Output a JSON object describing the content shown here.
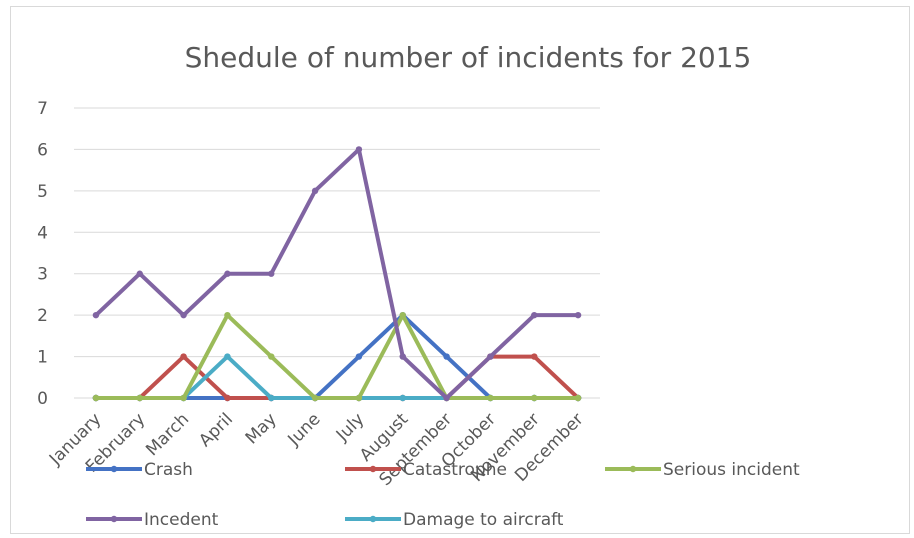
{
  "chart_data": {
    "type": "line",
    "title": "Shedule of number of incidents for 2015",
    "xlabel": "",
    "ylabel": "",
    "categories": [
      "January",
      "February",
      "March",
      "April",
      "May",
      "June",
      "July",
      "August",
      "September",
      "October",
      "November",
      "December"
    ],
    "yticks": [
      "0",
      "1",
      "2",
      "3",
      "4",
      "5",
      "6",
      "7"
    ],
    "ylim": [
      0,
      7
    ],
    "grid": true,
    "legend_position": "bottom",
    "series": [
      {
        "name": "Crash",
        "color": "#4472c4",
        "values": [
          0,
          0,
          0,
          0,
          0,
          0,
          1,
          2,
          1,
          0,
          0,
          0
        ]
      },
      {
        "name": "Catastrophe",
        "color": "#c0504d",
        "values": [
          0,
          0,
          1,
          0,
          0,
          0,
          0,
          0,
          0,
          1,
          1,
          0
        ]
      },
      {
        "name": "Serious incident",
        "color": "#9bbb59",
        "values": [
          0,
          0,
          0,
          2,
          1,
          0,
          0,
          2,
          0,
          0,
          0,
          0
        ]
      },
      {
        "name": "Incedent",
        "color": "#8064a2",
        "values": [
          2,
          3,
          2,
          3,
          3,
          5,
          6,
          1,
          0,
          1,
          2,
          2
        ]
      },
      {
        "name": "Damage to aircraft",
        "color": "#4bacc6",
        "values": [
          0,
          0,
          0,
          1,
          0,
          0,
          0,
          0,
          0,
          0,
          0,
          0
        ]
      }
    ]
  }
}
